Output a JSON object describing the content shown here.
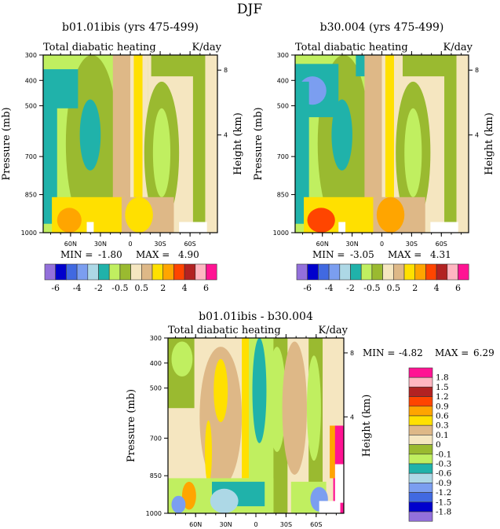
{
  "title": "DJF",
  "colors": [
    "#9370db",
    "#0000cd",
    "#4169e1",
    "#7b9ef0",
    "#add8e6",
    "#20b2aa",
    "#c0ef60",
    "#9aba30",
    "#f5e6c0",
    "#deb887",
    "#ffe000",
    "#ffa500",
    "#ff4500",
    "#b22222",
    "#ffb6c1",
    "#ff1493"
  ],
  "chart_data": [
    {
      "type": "heatmap",
      "title": "b01.01ibis (yrs 475-499)",
      "left_label": "Total diabatic heating",
      "right_label": "K/day",
      "ylabel": "Pressure (mb)",
      "ylabel_right": "Height (km)",
      "xticks": [
        "60N",
        "30N",
        "0",
        "30S",
        "60S"
      ],
      "yticks": [
        "300",
        "400",
        "500",
        "700",
        "850",
        "1000"
      ],
      "yticks_right": [
        "8",
        "4"
      ],
      "stats": {
        "min_label": "MIN =",
        "min": "-1.80",
        "max_label": "MAX =",
        "max": "4.90"
      },
      "colorbar_labels": [
        "-6",
        "-4",
        "-2",
        "-0.5",
        "0.5",
        "2",
        "4",
        "6"
      ]
    },
    {
      "type": "heatmap",
      "title": "b30.004 (yrs 475-499)",
      "left_label": "Total diabatic heating",
      "right_label": "K/day",
      "ylabel": "Pressure (mb)",
      "ylabel_right": "Height (km)",
      "xticks": [
        "60N",
        "30N",
        "0",
        "30S",
        "60S"
      ],
      "yticks": [
        "300",
        "400",
        "500",
        "700",
        "850",
        "1000"
      ],
      "yticks_right": [
        "8",
        "4"
      ],
      "stats": {
        "min_label": "MIN =",
        "min": "-3.05",
        "max_label": "MAX =",
        "max": "4.31"
      },
      "colorbar_labels": [
        "-6",
        "-4",
        "-2",
        "-0.5",
        "0.5",
        "2",
        "4",
        "6"
      ]
    },
    {
      "type": "heatmap",
      "title": "b01.01ibis - b30.004",
      "left_label": "Total diabatic heating",
      "right_label": "K/day",
      "ylabel": "Pressure (mb)",
      "ylabel_right": "Height (km)",
      "xticks": [
        "60N",
        "30N",
        "0",
        "30S",
        "60S"
      ],
      "yticks": [
        "300",
        "400",
        "500",
        "700",
        "850",
        "1000"
      ],
      "yticks_right": [
        "8",
        "4"
      ],
      "stats": {
        "min_label": "MIN =",
        "min": "-4.82",
        "max_label": "MAX =",
        "max": "6.29"
      },
      "colorbar_labels": [
        "1.8",
        "1.5",
        "1.2",
        "0.9",
        "0.6",
        "0.3",
        "0.1",
        "0",
        "-0.1",
        "-0.3",
        "-0.6",
        "-0.9",
        "-1.2",
        "-1.5",
        "-1.8"
      ]
    }
  ]
}
